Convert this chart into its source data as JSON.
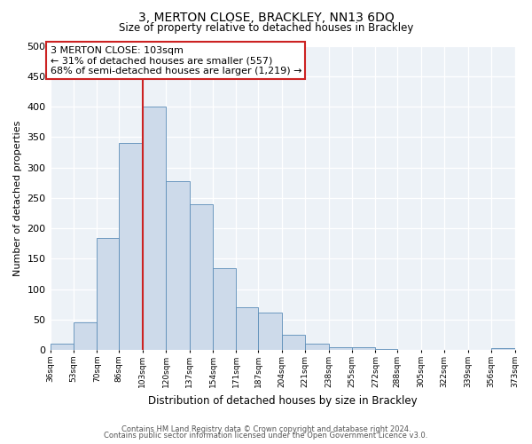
{
  "title": "3, MERTON CLOSE, BRACKLEY, NN13 6DQ",
  "subtitle": "Size of property relative to detached houses in Brackley",
  "xlabel": "Distribution of detached houses by size in Brackley",
  "ylabel": "Number of detached properties",
  "bar_color": "#cddaea",
  "bar_edge_color": "#5b8db8",
  "background_color": "#edf2f7",
  "annotation_box_color": "#ffffff",
  "annotation_border_color": "#cc2222",
  "marker_line_color": "#cc2222",
  "marker_value": 103,
  "annotation_title": "3 MERTON CLOSE: 103sqm",
  "annotation_line1": "← 31% of detached houses are smaller (557)",
  "annotation_line2": "68% of semi-detached houses are larger (1,219) →",
  "footer_line1": "Contains HM Land Registry data © Crown copyright and database right 2024.",
  "footer_line2": "Contains public sector information licensed under the Open Government Licence v3.0.",
  "bin_edges": [
    36,
    53,
    70,
    86,
    103,
    120,
    137,
    154,
    171,
    187,
    204,
    221,
    238,
    255,
    272,
    288,
    305,
    322,
    339,
    356,
    373
  ],
  "bin_heights": [
    10,
    46,
    184,
    340,
    400,
    278,
    240,
    135,
    70,
    62,
    25,
    11,
    5,
    4,
    2,
    1,
    0,
    0,
    0,
    3
  ],
  "ylim": [
    0,
    500
  ],
  "yticks": [
    0,
    50,
    100,
    150,
    200,
    250,
    300,
    350,
    400,
    450,
    500
  ]
}
